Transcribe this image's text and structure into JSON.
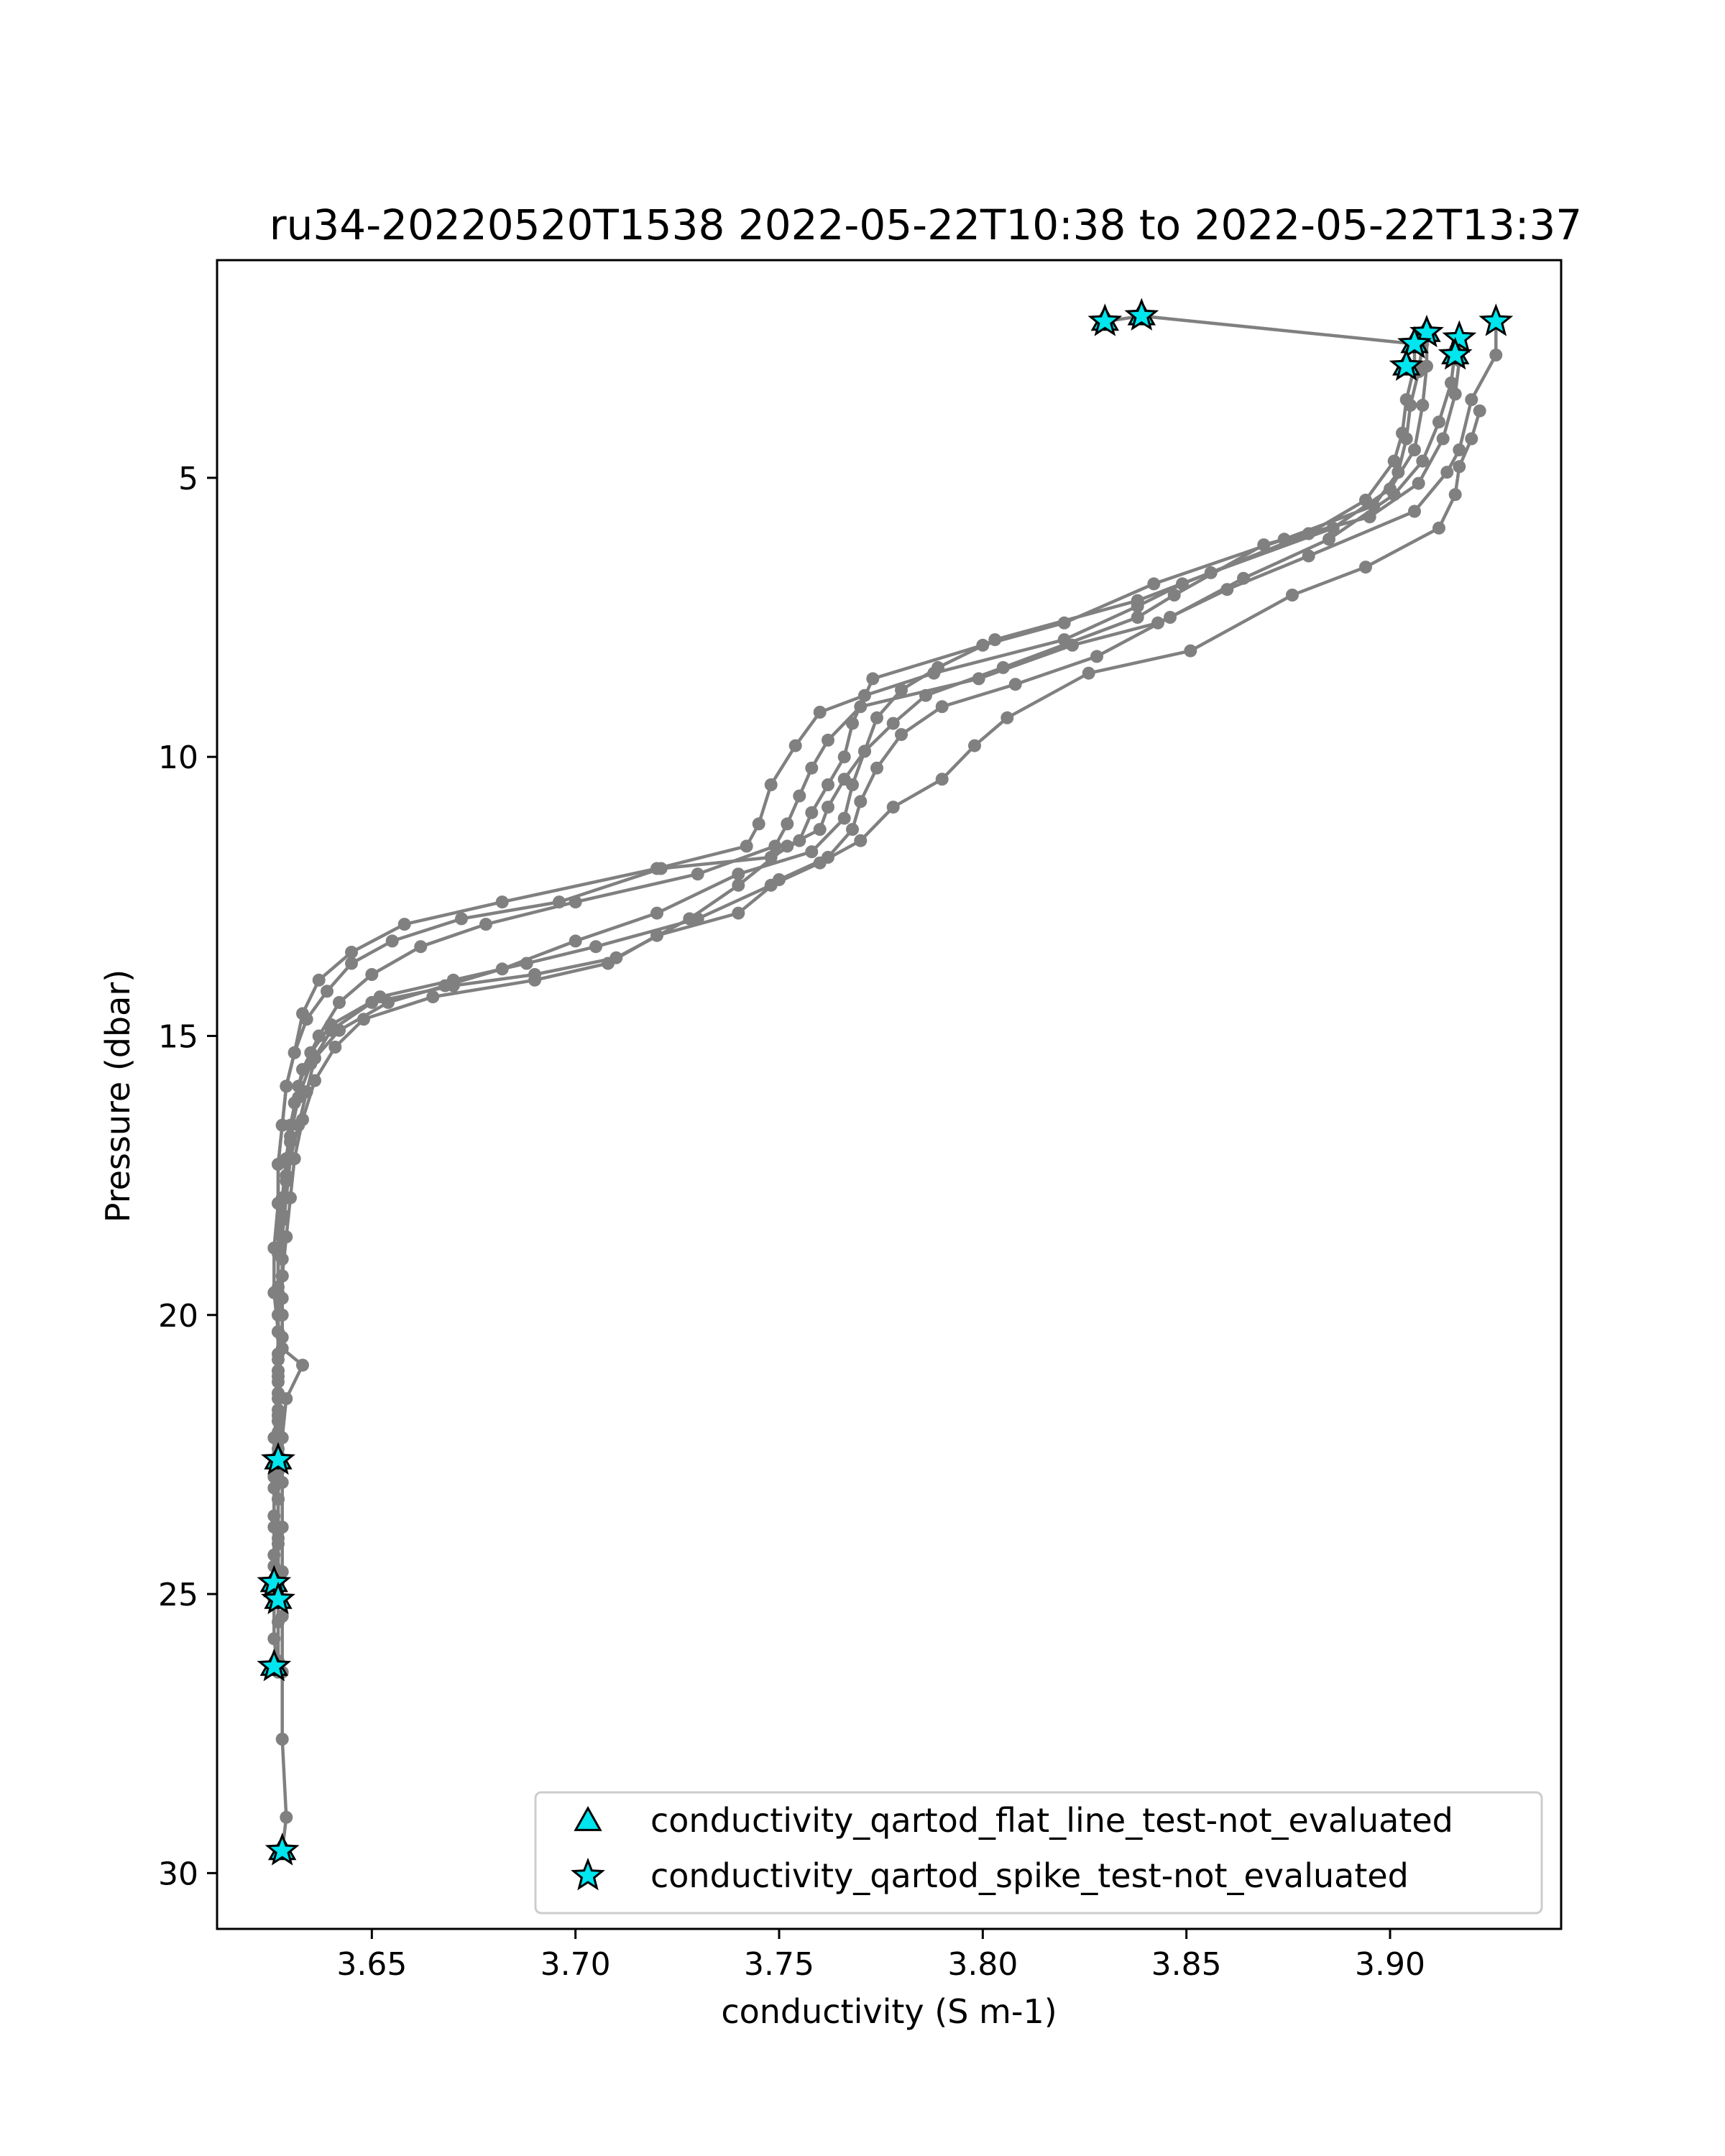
{
  "chart_data": {
    "type": "scatter",
    "title": "ru34-20220520T1538 2022-05-22T10:38 to 2022-05-22T13:37",
    "xlabel": "conductivity (S m-1)",
    "ylabel": "Pressure (dbar)",
    "xlim": [
      3.612,
      3.942
    ],
    "ylim": [
      31.0,
      1.1
    ],
    "y_inverted": true,
    "grid": false,
    "x_ticks": [
      {
        "value": 3.65,
        "label": "3.65"
      },
      {
        "value": 3.7,
        "label": "3.70"
      },
      {
        "value": 3.75,
        "label": "3.75"
      },
      {
        "value": 3.8,
        "label": "3.80"
      },
      {
        "value": 3.85,
        "label": "3.85"
      },
      {
        "value": 3.9,
        "label": "3.90"
      }
    ],
    "y_ticks": [
      {
        "value": 5,
        "label": "5"
      },
      {
        "value": 10,
        "label": "10"
      },
      {
        "value": 15,
        "label": "15"
      },
      {
        "value": 20,
        "label": "20"
      },
      {
        "value": 25,
        "label": "25"
      },
      {
        "value": 30,
        "label": "30"
      }
    ],
    "profile_color": "#808080",
    "flag_color": "#00e5ee",
    "profiles": [
      [
        [
          3.83,
          2.2
        ],
        [
          3.839,
          2.1
        ],
        [
          3.906,
          2.6
        ],
        [
          3.906,
          3.0
        ],
        [
          3.904,
          3.6
        ],
        [
          3.903,
          4.2
        ],
        [
          3.901,
          4.7
        ],
        [
          3.894,
          5.4
        ],
        [
          3.88,
          6.0
        ],
        [
          3.849,
          6.9
        ],
        [
          3.838,
          7.3
        ],
        [
          3.82,
          7.9
        ],
        [
          3.788,
          8.5
        ],
        [
          3.771,
          8.9
        ],
        [
          3.76,
          9.2
        ],
        [
          3.754,
          9.8
        ],
        [
          3.748,
          10.5
        ],
        [
          3.745,
          11.2
        ],
        [
          3.742,
          11.6
        ],
        [
          3.72,
          12.0
        ],
        [
          3.682,
          12.6
        ],
        [
          3.658,
          13.0
        ],
        [
          3.645,
          13.5
        ],
        [
          3.637,
          14.0
        ],
        [
          3.633,
          14.6
        ],
        [
          3.631,
          15.3
        ],
        [
          3.629,
          15.9
        ],
        [
          3.628,
          16.6
        ],
        [
          3.627,
          17.3
        ],
        [
          3.627,
          18.0
        ],
        [
          3.627,
          18.8
        ],
        [
          3.627,
          19.5
        ],
        [
          3.627,
          20.3
        ],
        [
          3.627,
          21.1
        ],
        [
          3.627,
          21.9
        ],
        [
          3.627,
          22.6
        ],
        [
          3.627,
          23.3
        ],
        [
          3.627,
          24.0
        ],
        [
          3.627,
          24.7
        ]
      ],
      [
        [
          3.926,
          2.2
        ],
        [
          3.926,
          2.8
        ],
        [
          3.92,
          3.6
        ],
        [
          3.917,
          4.5
        ],
        [
          3.914,
          4.9
        ],
        [
          3.906,
          5.6
        ],
        [
          3.88,
          6.4
        ],
        [
          3.86,
          7.0
        ],
        [
          3.843,
          7.6
        ],
        [
          3.822,
          8.0
        ],
        [
          3.799,
          8.6
        ],
        [
          3.77,
          9.1
        ],
        [
          3.762,
          9.7
        ],
        [
          3.758,
          10.2
        ],
        [
          3.755,
          10.7
        ],
        [
          3.752,
          11.2
        ],
        [
          3.749,
          11.6
        ],
        [
          3.73,
          12.1
        ],
        [
          3.7,
          12.6
        ],
        [
          3.678,
          13.0
        ],
        [
          3.662,
          13.4
        ],
        [
          3.65,
          13.9
        ],
        [
          3.642,
          14.4
        ],
        [
          3.637,
          15.0
        ],
        [
          3.633,
          15.6
        ],
        [
          3.631,
          16.2
        ],
        [
          3.63,
          16.9
        ],
        [
          3.629,
          17.6
        ],
        [
          3.628,
          18.3
        ],
        [
          3.628,
          19.0
        ],
        [
          3.628,
          19.7
        ],
        [
          3.628,
          20.4
        ],
        [
          3.627,
          21.2
        ],
        [
          3.627,
          21.9
        ],
        [
          3.627,
          22.6
        ]
      ],
      [
        [
          3.908,
          2.6
        ],
        [
          3.907,
          3.1
        ],
        [
          3.905,
          3.7
        ],
        [
          3.904,
          4.3
        ],
        [
          3.902,
          4.9
        ],
        [
          3.896,
          5.5
        ],
        [
          3.874,
          6.1
        ],
        [
          3.842,
          6.9
        ],
        [
          3.82,
          7.6
        ],
        [
          3.8,
          8.0
        ],
        [
          3.773,
          8.6
        ],
        [
          3.768,
          9.4
        ],
        [
          3.766,
          10.0
        ],
        [
          3.762,
          10.5
        ],
        [
          3.758,
          11.0
        ],
        [
          3.755,
          11.5
        ],
        [
          3.748,
          11.8
        ],
        [
          3.721,
          12.0
        ],
        [
          3.696,
          12.6
        ],
        [
          3.672,
          12.9
        ],
        [
          3.655,
          13.3
        ],
        [
          3.645,
          13.7
        ],
        [
          3.639,
          14.2
        ],
        [
          3.634,
          14.7
        ],
        [
          3.631,
          15.3
        ],
        [
          3.629,
          15.9
        ],
        [
          3.628,
          16.6
        ],
        [
          3.627,
          17.3
        ],
        [
          3.627,
          18.0
        ],
        [
          3.626,
          18.8
        ],
        [
          3.626,
          19.6
        ],
        [
          3.627,
          20.3
        ],
        [
          3.627,
          21.0
        ],
        [
          3.627,
          21.7
        ],
        [
          3.627,
          22.4
        ],
        [
          3.626,
          23.1
        ],
        [
          3.626,
          23.8
        ],
        [
          3.626,
          24.5
        ],
        [
          3.626,
          25.1
        ],
        [
          3.626,
          25.8
        ],
        [
          3.627,
          26.4
        ]
      ],
      [
        [
          3.909,
          2.4
        ],
        [
          3.909,
          3.0
        ],
        [
          3.908,
          3.7
        ],
        [
          3.906,
          4.5
        ],
        [
          3.9,
          5.2
        ],
        [
          3.886,
          5.9
        ],
        [
          3.856,
          6.7
        ],
        [
          3.838,
          7.2
        ],
        [
          3.803,
          7.9
        ],
        [
          3.789,
          8.4
        ],
        [
          3.78,
          8.8
        ],
        [
          3.774,
          9.3
        ],
        [
          3.771,
          9.9
        ],
        [
          3.768,
          10.5
        ],
        [
          3.766,
          11.1
        ],
        [
          3.758,
          11.7
        ],
        [
          3.74,
          12.1
        ],
        [
          3.72,
          12.8
        ],
        [
          3.7,
          13.3
        ],
        [
          3.682,
          13.8
        ],
        [
          3.668,
          14.1
        ],
        [
          3.654,
          14.4
        ],
        [
          3.642,
          14.9
        ],
        [
          3.636,
          15.4
        ],
        [
          3.634,
          16.0
        ],
        [
          3.632,
          16.6
        ],
        [
          3.63,
          17.2
        ],
        [
          3.629,
          17.9
        ],
        [
          3.628,
          18.6
        ],
        [
          3.628,
          19.3
        ],
        [
          3.627,
          20.0
        ],
        [
          3.627,
          20.8
        ],
        [
          3.627,
          21.5
        ],
        [
          3.626,
          22.2
        ],
        [
          3.626,
          22.9
        ],
        [
          3.626,
          23.6
        ],
        [
          3.626,
          24.3
        ],
        [
          3.626,
          24.9
        ]
      ],
      [
        [
          3.917,
          2.9
        ],
        [
          3.916,
          3.5
        ],
        [
          3.913,
          4.3
        ],
        [
          3.907,
          5.1
        ],
        [
          3.895,
          5.7
        ],
        [
          3.869,
          6.2
        ],
        [
          3.847,
          7.1
        ],
        [
          3.838,
          7.5
        ],
        [
          3.805,
          8.4
        ],
        [
          3.786,
          8.9
        ],
        [
          3.778,
          9.4
        ],
        [
          3.771,
          9.9
        ],
        [
          3.766,
          10.4
        ],
        [
          3.762,
          10.9
        ],
        [
          3.76,
          11.3
        ],
        [
          3.752,
          11.6
        ],
        [
          3.74,
          12.3
        ],
        [
          3.728,
          12.9
        ],
        [
          3.71,
          13.6
        ],
        [
          3.69,
          13.9
        ],
        [
          3.67,
          14.1
        ],
        [
          3.65,
          14.4
        ],
        [
          3.64,
          14.9
        ],
        [
          3.635,
          15.5
        ],
        [
          3.632,
          16.1
        ],
        [
          3.63,
          16.8
        ],
        [
          3.629,
          17.5
        ],
        [
          3.628,
          18.2
        ],
        [
          3.627,
          18.9
        ],
        [
          3.627,
          19.6
        ],
        [
          3.627,
          20.3
        ],
        [
          3.627,
          21.0
        ],
        [
          3.627,
          21.8
        ],
        [
          3.627,
          22.5
        ],
        [
          3.627,
          23.3
        ],
        [
          3.627,
          24.1
        ],
        [
          3.627,
          24.8
        ],
        [
          3.627,
          25.5
        ],
        [
          3.627,
          26.2
        ]
      ],
      [
        [
          3.916,
          2.7
        ],
        [
          3.915,
          3.3
        ],
        [
          3.912,
          4.0
        ],
        [
          3.908,
          4.7
        ],
        [
          3.901,
          5.3
        ],
        [
          3.885,
          6.1
        ],
        [
          3.864,
          6.8
        ],
        [
          3.846,
          7.5
        ],
        [
          3.828,
          8.2
        ],
        [
          3.808,
          8.7
        ],
        [
          3.79,
          9.1
        ],
        [
          3.78,
          9.6
        ],
        [
          3.774,
          10.2
        ],
        [
          3.77,
          10.8
        ],
        [
          3.768,
          11.3
        ],
        [
          3.762,
          11.8
        ],
        [
          3.75,
          12.2
        ],
        [
          3.74,
          12.8
        ],
        [
          3.72,
          13.2
        ],
        [
          3.708,
          13.7
        ],
        [
          3.69,
          14.0
        ],
        [
          3.665,
          14.3
        ],
        [
          3.648,
          14.7
        ],
        [
          3.641,
          15.2
        ],
        [
          3.636,
          15.8
        ],
        [
          3.633,
          16.5
        ],
        [
          3.631,
          17.2
        ],
        [
          3.63,
          17.9
        ],
        [
          3.629,
          18.6
        ],
        [
          3.628,
          19.3
        ],
        [
          3.628,
          20.0
        ],
        [
          3.628,
          20.6
        ],
        [
          3.633,
          20.9
        ],
        [
          3.629,
          21.5
        ],
        [
          3.628,
          22.2
        ],
        [
          3.628,
          23.0
        ],
        [
          3.628,
          23.8
        ],
        [
          3.628,
          24.6
        ],
        [
          3.628,
          25.4
        ],
        [
          3.628,
          26.4
        ],
        [
          3.628,
          27.6
        ],
        [
          3.629,
          29.0
        ],
        [
          3.628,
          29.6
        ]
      ],
      [
        [
          3.922,
          3.8
        ],
        [
          3.92,
          4.3
        ],
        [
          3.917,
          4.8
        ],
        [
          3.916,
          5.3
        ],
        [
          3.912,
          5.9
        ],
        [
          3.894,
          6.6
        ],
        [
          3.876,
          7.1
        ],
        [
          3.851,
          8.1
        ],
        [
          3.826,
          8.5
        ],
        [
          3.806,
          9.3
        ],
        [
          3.798,
          9.8
        ],
        [
          3.79,
          10.4
        ],
        [
          3.778,
          10.9
        ],
        [
          3.77,
          11.5
        ],
        [
          3.76,
          11.9
        ],
        [
          3.748,
          12.3
        ],
        [
          3.73,
          12.9
        ],
        [
          3.705,
          13.4
        ],
        [
          3.688,
          13.7
        ],
        [
          3.67,
          14.0
        ],
        [
          3.652,
          14.3
        ],
        [
          3.64,
          14.8
        ],
        [
          3.635,
          15.3
        ],
        [
          3.632,
          15.9
        ],
        [
          3.63,
          16.6
        ],
        [
          3.629,
          17.2
        ],
        [
          3.628,
          17.9
        ],
        [
          3.628,
          18.6
        ],
        [
          3.628,
          19.3
        ],
        [
          3.627,
          20.0
        ],
        [
          3.627,
          20.7
        ],
        [
          3.627,
          21.4
        ],
        [
          3.627,
          22.1
        ],
        [
          3.627,
          22.8
        ]
      ]
    ],
    "series": [
      {
        "name": "conductivity_qartod_flat_line_test-not_evaluated",
        "marker": "triangle",
        "points": [
          [
            3.83,
            2.2
          ],
          [
            3.839,
            2.1
          ],
          [
            3.906,
            2.6
          ],
          [
            3.909,
            2.4
          ],
          [
            3.916,
            2.8
          ],
          [
            3.904,
            3.0
          ],
          [
            3.627,
            22.6
          ],
          [
            3.626,
            24.8
          ],
          [
            3.627,
            25.1
          ],
          [
            3.626,
            26.3
          ],
          [
            3.628,
            29.6
          ]
        ]
      },
      {
        "name": "conductivity_qartod_spike_test-not_evaluated",
        "marker": "star",
        "points": [
          [
            3.83,
            2.2
          ],
          [
            3.839,
            2.1
          ],
          [
            3.926,
            2.2
          ],
          [
            3.909,
            2.4
          ],
          [
            3.917,
            2.5
          ],
          [
            3.906,
            2.6
          ],
          [
            3.916,
            2.8
          ],
          [
            3.904,
            3.0
          ],
          [
            3.627,
            22.6
          ],
          [
            3.626,
            24.8
          ],
          [
            3.627,
            25.1
          ],
          [
            3.626,
            26.3
          ],
          [
            3.628,
            29.6
          ]
        ]
      }
    ]
  }
}
